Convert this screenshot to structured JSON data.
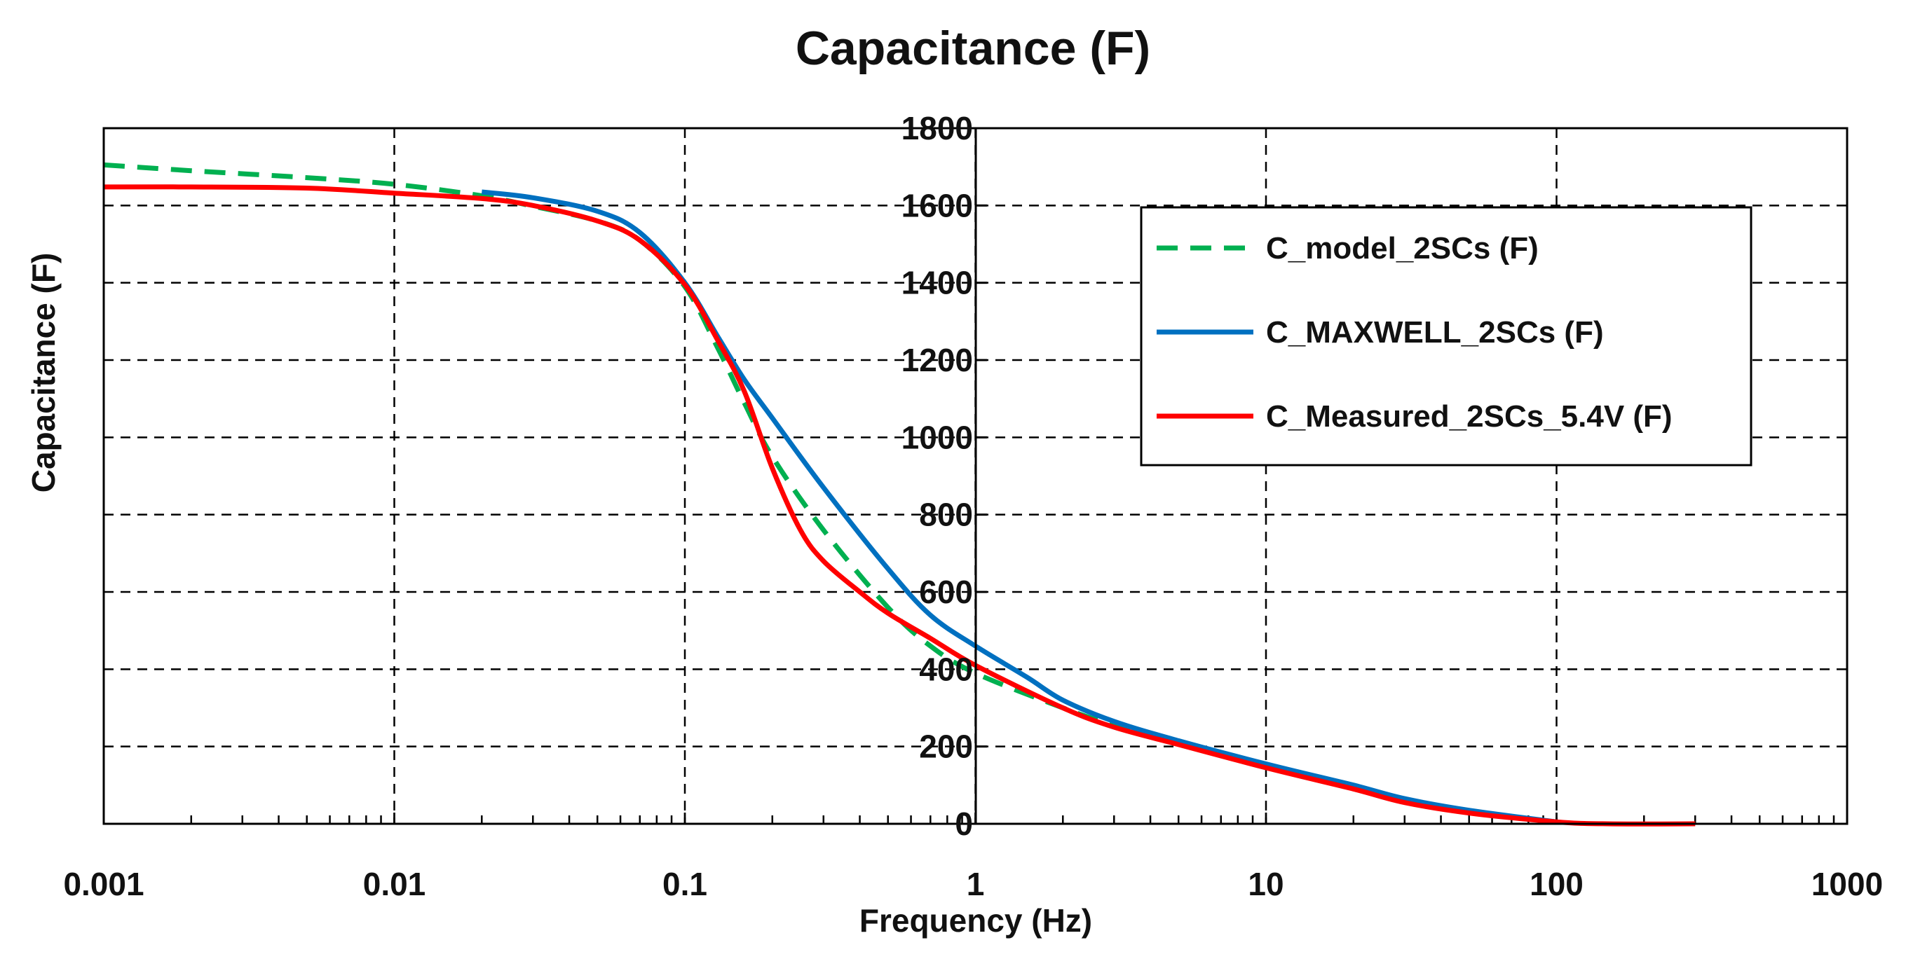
{
  "chart_data": {
    "type": "line",
    "title": "Capacitance (F)",
    "xlabel": "Frequency (Hz)",
    "ylabel": "Capacitance (F)",
    "xscale": "log",
    "xlim": [
      0.001,
      1000
    ],
    "ylim": [
      0,
      1800
    ],
    "x_ticks": [
      "0.001",
      "0.01",
      "0.1",
      "1",
      "10",
      "100",
      "1000"
    ],
    "y_ticks": [
      "0",
      "200",
      "400",
      "600",
      "800",
      "1000",
      "1200",
      "1400",
      "1600",
      "1800"
    ],
    "grid": true,
    "legend_position": "top-right",
    "series": [
      {
        "name": "C_model_2SCs (F)",
        "color": "#00b050",
        "style": "dashed",
        "x": [
          0.001,
          0.002,
          0.005,
          0.01,
          0.02,
          0.03,
          0.05,
          0.07,
          0.1,
          0.13,
          0.16,
          0.2,
          0.3,
          0.5,
          0.7,
          1,
          2,
          3,
          5,
          10,
          20,
          30,
          50,
          100
        ],
        "y": [
          1705,
          1690,
          1672,
          1655,
          1625,
          1598,
          1560,
          1510,
          1390,
          1230,
          1090,
          950,
          760,
          560,
          460,
          390,
          300,
          255,
          210,
          150,
          100,
          60,
          30,
          5
        ]
      },
      {
        "name": "C_MAXWELL_2SCs (F)",
        "color": "#0070c0",
        "style": "solid",
        "x": [
          0.02,
          0.03,
          0.05,
          0.07,
          0.1,
          0.13,
          0.16,
          0.2,
          0.3,
          0.5,
          0.7,
          1,
          1.5,
          2,
          3,
          5,
          10,
          20,
          30,
          50,
          100
        ],
        "y": [
          1635,
          1620,
          1585,
          1530,
          1400,
          1260,
          1150,
          1050,
          870,
          660,
          540,
          460,
          380,
          320,
          265,
          215,
          155,
          100,
          65,
          35,
          5
        ]
      },
      {
        "name": "C_Measured_2SCs_5.4V (F)",
        "color": "#ff0000",
        "style": "solid",
        "x": [
          0.001,
          0.002,
          0.005,
          0.01,
          0.02,
          0.03,
          0.05,
          0.07,
          0.1,
          0.13,
          0.16,
          0.2,
          0.25,
          0.3,
          0.4,
          0.5,
          0.7,
          1,
          2,
          3,
          5,
          10,
          20,
          30,
          50,
          100,
          150,
          300
        ],
        "y": [
          1648,
          1648,
          1645,
          1632,
          1618,
          1600,
          1560,
          1510,
          1395,
          1250,
          1120,
          920,
          760,
          680,
          600,
          545,
          480,
          410,
          300,
          250,
          205,
          145,
          90,
          55,
          28,
          5,
          0,
          0
        ]
      }
    ]
  }
}
